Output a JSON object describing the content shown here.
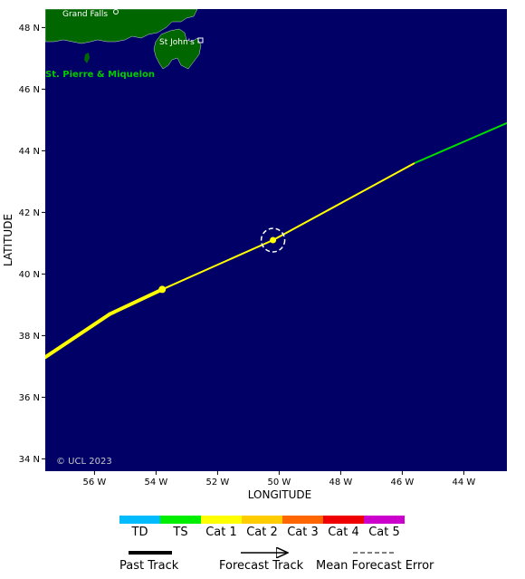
{
  "map": {
    "x_axis_title": "LONGITUDE",
    "y_axis_title": "LATITUDE",
    "x_ticks": [
      {
        "value": -56,
        "label": "56 W"
      },
      {
        "value": -54,
        "label": "54 W"
      },
      {
        "value": -52,
        "label": "52 W"
      },
      {
        "value": -50,
        "label": "50 W"
      },
      {
        "value": -48,
        "label": "48 W"
      },
      {
        "value": -46,
        "label": "46 W"
      },
      {
        "value": -44,
        "label": "44 W"
      }
    ],
    "y_ticks": [
      {
        "value": 34,
        "label": "34 N"
      },
      {
        "value": 36,
        "label": "36 N"
      },
      {
        "value": 38,
        "label": "38 N"
      },
      {
        "value": 40,
        "label": "40 N"
      },
      {
        "value": 42,
        "label": "42 N"
      },
      {
        "value": 44,
        "label": "44 N"
      },
      {
        "value": 46,
        "label": "46 N"
      },
      {
        "value": 48,
        "label": "48 N"
      }
    ],
    "lon_range": [
      -57.6,
      -42.6
    ],
    "lat_range": [
      33.6,
      48.6
    ],
    "ocean_color": "#000066",
    "land_color": "#006600",
    "places": {
      "grand_falls": "Grand Falls",
      "st_johns": "St John's",
      "st_pierre": "St. Pierre & Miquelon"
    },
    "copyright": "© UCL 2023"
  },
  "track": {
    "past": [
      {
        "lon": -57.6,
        "lat": 37.3,
        "color": "#ffff00"
      },
      {
        "lon": -55.5,
        "lat": 38.7,
        "color": "#ffff00"
      },
      {
        "lon": -53.8,
        "lat": 39.5,
        "color": "#ffff00"
      }
    ],
    "current_position": {
      "lon": -50.2,
      "lat": 41.1
    },
    "forecast": [
      {
        "lon": -53.8,
        "lat": 39.5,
        "color": "#ffff00"
      },
      {
        "lon": -50.2,
        "lat": 41.1,
        "color": "#ffff00"
      },
      {
        "lon": -45.6,
        "lat": 43.6,
        "color": "#ffff00"
      },
      {
        "lon": -42.6,
        "lat": 44.9,
        "color": "#00dd00"
      }
    ]
  },
  "legend": {
    "categories": [
      {
        "label": "TD",
        "color": "#00bbff"
      },
      {
        "label": "TS",
        "color": "#00ee00"
      },
      {
        "label": "Cat 1",
        "color": "#ffff00"
      },
      {
        "label": "Cat 2",
        "color": "#ffcc00"
      },
      {
        "label": "Cat 3",
        "color": "#ff6600"
      },
      {
        "label": "Cat 4",
        "color": "#ee0000"
      },
      {
        "label": "Cat 5",
        "color": "#cc00cc"
      }
    ],
    "past_track": "Past Track",
    "forecast_track": "Forecast Track",
    "mean_error": "Mean Forecast Error"
  }
}
